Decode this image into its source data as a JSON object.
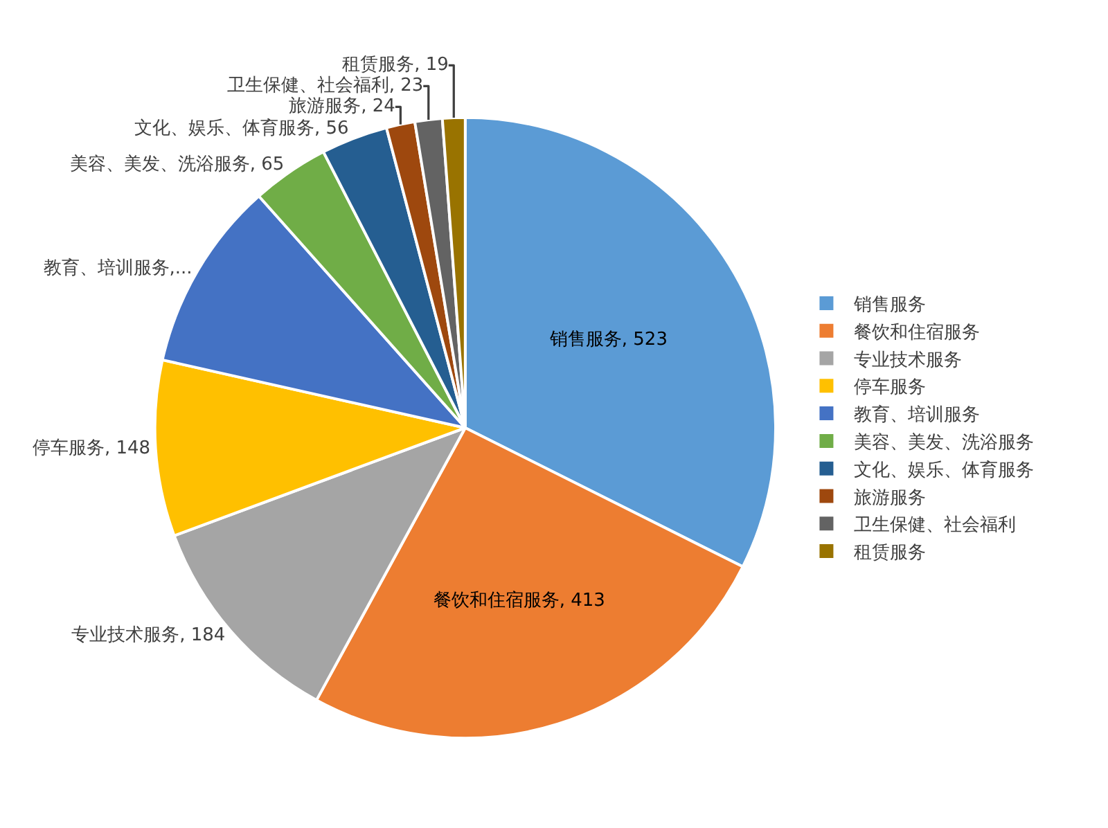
{
  "chart_data": {
    "type": "pie",
    "categories": [
      "销售服务",
      "餐饮和住宿服务",
      "专业技术服务",
      "停车服务",
      "教育、培训服务",
      "美容、美发、洗浴服务",
      "文化、娱乐、体育服务",
      "旅游服务",
      "卫生保健、社会福利",
      "租赁服务"
    ],
    "values": [
      523,
      413,
      184,
      148,
      160,
      65,
      56,
      24,
      23,
      19
    ],
    "colors": [
      "#5b9bd5",
      "#ed7d31",
      "#a5a5a5",
      "#ffc000",
      "#4472c4",
      "#70ad47",
      "#255e91",
      "#9e480e",
      "#636363",
      "#997300"
    ],
    "value_labels": [
      "销售服务, 523",
      "餐饮和住宿服务, 413",
      "专业技术服务, 184",
      "停车服务, 148",
      "教育、培训服务,...",
      "美容、美发、洗浴服务, 65",
      "文化、娱乐、体育服务, 56",
      "旅游服务, 24",
      "卫生保健、社会福利, 23",
      "租赁服务, 19"
    ],
    "legend": "right"
  }
}
